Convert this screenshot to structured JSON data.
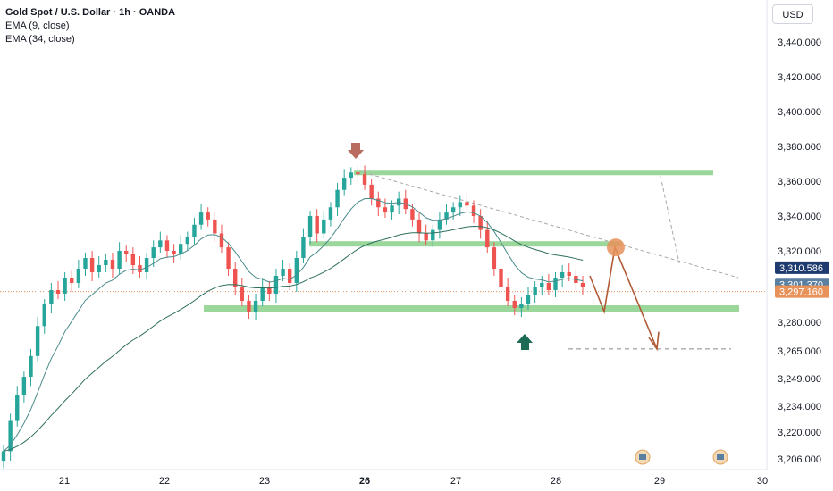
{
  "legend": {
    "title": "Gold Spot / U.S. Dollar · 1h · OANDA",
    "ema9": "EMA (9, close)",
    "ema34": "EMA (34, close)"
  },
  "currency_button": "USD",
  "colors": {
    "up": "#26a69a",
    "down": "#ef5350",
    "band": "#9bd79b",
    "ema_fast": "#4a8a8a",
    "ema_slow": "#2f6f5f",
    "proj": "#b05a35",
    "circle": "#e8925a",
    "price_dark": "#1e3a6e",
    "price_mid": "#5b7fa0",
    "price_orange": "#e8925a"
  },
  "chart_data": {
    "type": "candlestick",
    "y_axis_labels": [
      "3,440.000",
      "3,420.000",
      "3,400.000",
      "3,380.000",
      "3,360.000",
      "3,340.000",
      "3,320.000",
      "3,280.000",
      "3,265.000",
      "3,249.000",
      "3,234.000",
      "3,220.000",
      "3,206.000"
    ],
    "x_axis_labels": [
      "21",
      "22",
      "23",
      "26",
      "27",
      "28",
      "29",
      "30"
    ],
    "x_axis_bold": "26",
    "price_tags": [
      {
        "label": "3,310.586",
        "value": 3310.586,
        "color": "#1e3a6e"
      },
      {
        "label": "3,301.370",
        "value": 3301.37,
        "color": "#5b7fa0"
      },
      {
        "label": "3,297.160",
        "value": 3297.16,
        "color": "#e8925a"
      }
    ],
    "resistance_zones": [
      3365,
      3324
    ],
    "support_zone": 3288,
    "target_level": 3266,
    "candles_close": [
      3210,
      3226,
      3240,
      3250,
      3262,
      3278,
      3290,
      3298,
      3296,
      3305,
      3302,
      3310,
      3316,
      3308,
      3312,
      3315,
      3310,
      3320,
      3318,
      3312,
      3308,
      3316,
      3322,
      3326,
      3320,
      3318,
      3324,
      3328,
      3335,
      3342,
      3338,
      3330,
      3322,
      3310,
      3300,
      3292,
      3286,
      3292,
      3300,
      3296,
      3306,
      3310,
      3302,
      3316,
      3328,
      3340,
      3330,
      3338,
      3345,
      3355,
      3362,
      3365,
      3364,
      3358,
      3350,
      3345,
      3342,
      3346,
      3350,
      3344,
      3338,
      3330,
      3326,
      3332,
      3338,
      3342,
      3345,
      3348,
      3346,
      3340,
      3332,
      3322,
      3310,
      3300,
      3292,
      3288,
      3290,
      3295,
      3300,
      3302,
      3298,
      3305,
      3308,
      3306,
      3302,
      3300
    ],
    "ema9_note": "EMA (9, close)",
    "ema34_note": "EMA (34, close)",
    "grid": false
  }
}
